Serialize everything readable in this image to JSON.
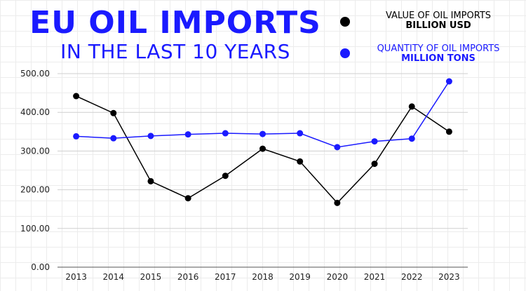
{
  "header": {
    "title": "EU OIL IMPORTS",
    "subtitle": "IN THE LAST 10 YEARS"
  },
  "legend": [
    {
      "line1": "VALUE OF OIL IMPORTS",
      "line2": "BILLION USD",
      "color": "#000000"
    },
    {
      "line1": "QUANTITY OF OIL IMPORTS",
      "line2": "MILLION TONS",
      "color": "#1a1aff"
    }
  ],
  "chart_data": {
    "type": "line",
    "categories": [
      "2013",
      "2014",
      "2015",
      "2016",
      "2017",
      "2018",
      "2019",
      "2020",
      "2021",
      "2022",
      "2023"
    ],
    "ylim": [
      0,
      500
    ],
    "yticks": [
      0,
      100,
      200,
      300,
      400,
      500
    ],
    "ytick_labels": [
      "0.00",
      "100.00",
      "200.00",
      "300.00",
      "400.00",
      "500.00"
    ],
    "grid": true,
    "series": [
      {
        "name": "VALUE OF OIL IMPORTS BILLION USD",
        "color": "#000000",
        "values": [
          442,
          398,
          222,
          178,
          236,
          306,
          273,
          166,
          267,
          415,
          350
        ]
      },
      {
        "name": "QUANTITY OF OIL IMPORTS MILLION TONS",
        "color": "#1a1aff",
        "values": [
          338,
          333,
          339,
          343,
          346,
          344,
          346,
          310,
          325,
          332,
          480
        ]
      }
    ]
  }
}
